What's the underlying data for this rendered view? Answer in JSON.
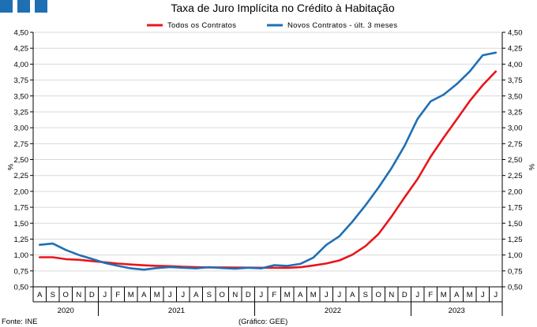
{
  "header": {
    "brand_color": "#1f6fb5",
    "brand_squares": [
      "square",
      "square",
      "square"
    ]
  },
  "footer": {
    "source": "Fonte: INE",
    "credit": "(Gráfico: GEE)"
  },
  "chart_data": {
    "type": "line",
    "title": "Taxa de Juro Implícita no Crédito à Habitação",
    "xlabel": "",
    "ylabel": "%",
    "ylabel_right": "%",
    "ylim": [
      0.5,
      4.5
    ],
    "yticks": [
      0.5,
      0.75,
      1.0,
      1.25,
      1.5,
      1.75,
      2.0,
      2.25,
      2.5,
      2.75,
      3.0,
      3.25,
      3.5,
      3.75,
      4.0,
      4.25,
      4.5
    ],
    "ytick_labels": [
      "0,50",
      "0,75",
      "1,00",
      "1,25",
      "1,50",
      "1,75",
      "2,00",
      "2,25",
      "2,50",
      "2,75",
      "3,00",
      "3,25",
      "3,50",
      "3,75",
      "4,00",
      "4,25",
      "4,50"
    ],
    "grid": true,
    "legend_position": "top",
    "categories": [
      "A",
      "S",
      "O",
      "N",
      "D",
      "J",
      "F",
      "M",
      "A",
      "M",
      "J",
      "J",
      "A",
      "S",
      "O",
      "N",
      "D",
      "J",
      "F",
      "M",
      "A",
      "M",
      "J",
      "J",
      "A",
      "S",
      "O",
      "N",
      "D",
      "J",
      "F",
      "M",
      "A",
      "M",
      "J",
      "J"
    ],
    "years": [
      {
        "label": "2020",
        "start": 0,
        "end": 4
      },
      {
        "label": "2021",
        "start": 5,
        "end": 16
      },
      {
        "label": "2022",
        "start": 17,
        "end": 28
      },
      {
        "label": "2023",
        "start": 29,
        "end": 35
      }
    ],
    "series": [
      {
        "name": "Todos os Contratos",
        "color": "#e8161b",
        "values": [
          0.965,
          0.965,
          0.935,
          0.925,
          0.905,
          0.885,
          0.865,
          0.85,
          0.838,
          0.83,
          0.825,
          0.815,
          0.81,
          0.805,
          0.805,
          0.803,
          0.801,
          0.8,
          0.8,
          0.798,
          0.808,
          0.835,
          0.866,
          0.915,
          1.005,
          1.14,
          1.33,
          1.605,
          1.905,
          2.195,
          2.545,
          2.845,
          3.13,
          3.42,
          3.67,
          3.885
        ]
      },
      {
        "name": "Novos Contratos - últ. 3 meses",
        "color": "#1f6fb5",
        "values": [
          1.16,
          1.18,
          1.08,
          1.0,
          0.94,
          0.875,
          0.83,
          0.79,
          0.77,
          0.795,
          0.81,
          0.8,
          0.79,
          0.81,
          0.795,
          0.785,
          0.8,
          0.79,
          0.84,
          0.83,
          0.86,
          0.96,
          1.16,
          1.295,
          1.525,
          1.78,
          2.06,
          2.365,
          2.715,
          3.14,
          3.415,
          3.52,
          3.685,
          3.885,
          4.14,
          4.18
        ]
      }
    ]
  }
}
